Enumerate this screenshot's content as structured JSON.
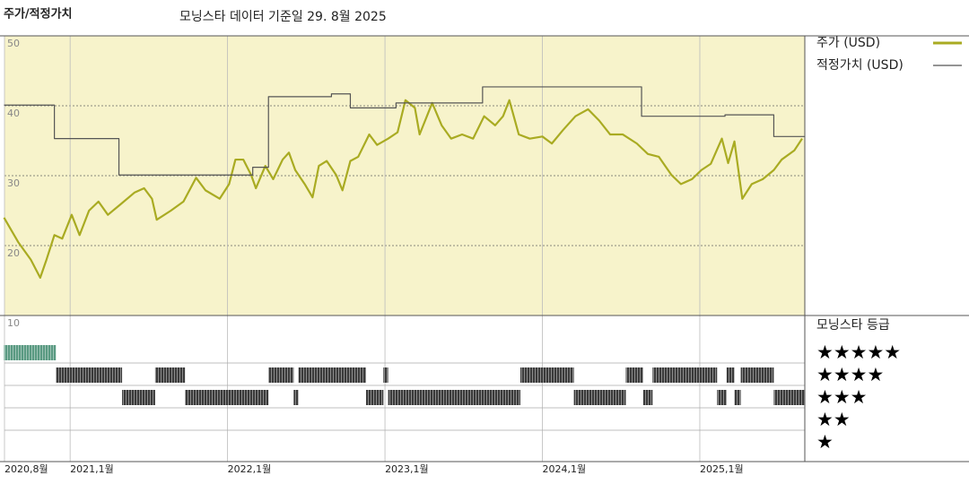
{
  "chart_data": {
    "type": "line",
    "title": "주가/적정가치",
    "subtitle": "모닝스타 데이터 기준일 29. 8월 2025",
    "background": "#f7f3cb",
    "grid": true,
    "xlim": [
      2020.583,
      2025.667
    ],
    "xticks": [
      {
        "value": 2020.583,
        "label": "2020,8월"
      },
      {
        "value": 2021,
        "label": "2021,1월"
      },
      {
        "value": 2022,
        "label": "2022,1월"
      },
      {
        "value": 2023,
        "label": "2023,1월"
      },
      {
        "value": 2024,
        "label": "2024,1월"
      },
      {
        "value": 2025,
        "label": "2025,1월"
      }
    ],
    "ylim": [
      10,
      50
    ],
    "yticks": [
      10,
      20,
      30,
      40,
      50
    ],
    "series": [
      {
        "name": "주가 (USD)",
        "color": "#a9ab22",
        "x": [
          2020.58,
          2020.67,
          2020.75,
          2020.81,
          2020.85,
          2020.9,
          2020.95,
          2021.01,
          2021.06,
          2021.12,
          2021.18,
          2021.24,
          2021.32,
          2021.41,
          2021.47,
          2021.52,
          2021.55,
          2021.64,
          2021.72,
          2021.8,
          2021.86,
          2021.95,
          2022.01,
          2022.05,
          2022.1,
          2022.15,
          2022.18,
          2022.24,
          2022.29,
          2022.35,
          2022.39,
          2022.43,
          2022.49,
          2022.54,
          2022.58,
          2022.63,
          2022.69,
          2022.73,
          2022.78,
          2022.83,
          2022.9,
          2022.95,
          2023.02,
          2023.08,
          2023.13,
          2023.19,
          2023.22,
          2023.3,
          2023.36,
          2023.42,
          2023.49,
          2023.56,
          2023.63,
          2023.7,
          2023.75,
          2023.79,
          2023.85,
          2023.92,
          2024.0,
          2024.06,
          2024.13,
          2024.21,
          2024.29,
          2024.36,
          2024.43,
          2024.51,
          2024.6,
          2024.67,
          2024.74,
          2024.82,
          2024.88,
          2024.95,
          2025.01,
          2025.07,
          2025.14,
          2025.18,
          2025.22,
          2025.27,
          2025.33,
          2025.4,
          2025.47,
          2025.52,
          2025.6,
          2025.65
        ],
        "values": [
          24.0,
          20.5,
          18.0,
          15.4,
          18.0,
          21.5,
          21.0,
          24.4,
          21.5,
          25.0,
          26.3,
          24.4,
          25.9,
          27.6,
          28.2,
          26.7,
          23.7,
          25.0,
          26.3,
          29.7,
          27.9,
          26.7,
          28.8,
          32.3,
          32.3,
          30.1,
          28.2,
          31.4,
          29.5,
          32.3,
          33.3,
          30.8,
          28.8,
          26.9,
          31.4,
          32.1,
          30.1,
          27.9,
          32.1,
          32.7,
          35.9,
          34.4,
          35.3,
          36.2,
          40.8,
          39.7,
          35.9,
          40.4,
          37.2,
          35.3,
          35.9,
          35.3,
          38.5,
          37.2,
          38.5,
          40.8,
          35.9,
          35.3,
          35.6,
          34.6,
          36.5,
          38.5,
          39.5,
          37.9,
          35.9,
          35.9,
          34.6,
          33.1,
          32.7,
          30.1,
          28.8,
          29.5,
          30.8,
          31.7,
          35.3,
          31.8,
          34.9,
          26.7,
          28.8,
          29.5,
          30.8,
          32.3,
          33.6,
          35.3
        ]
      },
      {
        "name": "적정가치 (USD)",
        "color": "#555555",
        "step": "post",
        "x": [
          2020.58,
          2020.9,
          2021.31,
          2022.16,
          2022.26,
          2022.66,
          2022.78,
          2023.07,
          2023.62,
          2024.63,
          2025.16,
          2025.47
        ],
        "values": [
          40.1,
          35.3,
          30.1,
          31.2,
          41.3,
          41.7,
          39.7,
          40.4,
          42.7,
          38.5,
          38.7,
          35.6
        ]
      }
    ],
    "rating_title": "모닝스타 등급",
    "rating_labels": [
      "★★★★★",
      "★★★★",
      "★★★",
      "★★",
      "★"
    ],
    "rating_colors": [
      "#3a3a3a",
      "#3a3a3a",
      "#3a3a3a",
      "#3a3a3a",
      "#5a9a82"
    ],
    "rating_periods": [
      {
        "start": 2020.58,
        "end": 2020.91,
        "stars": 5
      },
      {
        "start": 2020.91,
        "end": 2021.33,
        "stars": 4
      },
      {
        "start": 2021.33,
        "end": 2021.54,
        "stars": 3
      },
      {
        "start": 2021.54,
        "end": 2021.73,
        "stars": 4
      },
      {
        "start": 2021.73,
        "end": 2022.26,
        "stars": 3
      },
      {
        "start": 2022.26,
        "end": 2022.42,
        "stars": 4
      },
      {
        "start": 2022.42,
        "end": 2022.45,
        "stars": 3
      },
      {
        "start": 2022.45,
        "end": 2022.88,
        "stars": 4
      },
      {
        "start": 2022.88,
        "end": 2022.99,
        "stars": 3
      },
      {
        "start": 2022.99,
        "end": 2023.02,
        "stars": 4
      },
      {
        "start": 2023.02,
        "end": 2023.86,
        "stars": 3
      },
      {
        "start": 2023.86,
        "end": 2024.2,
        "stars": 4
      },
      {
        "start": 2024.2,
        "end": 2024.53,
        "stars": 3
      },
      {
        "start": 2024.53,
        "end": 2024.64,
        "stars": 4
      },
      {
        "start": 2024.64,
        "end": 2024.7,
        "stars": 3
      },
      {
        "start": 2024.7,
        "end": 2025.11,
        "stars": 4
      },
      {
        "start": 2025.11,
        "end": 2025.17,
        "stars": 3
      },
      {
        "start": 2025.17,
        "end": 2025.22,
        "stars": 4
      },
      {
        "start": 2025.22,
        "end": 2025.26,
        "stars": 3
      },
      {
        "start": 2025.26,
        "end": 2025.47,
        "stars": 4
      },
      {
        "start": 2025.47,
        "end": 2025.67,
        "stars": 3
      }
    ]
  }
}
